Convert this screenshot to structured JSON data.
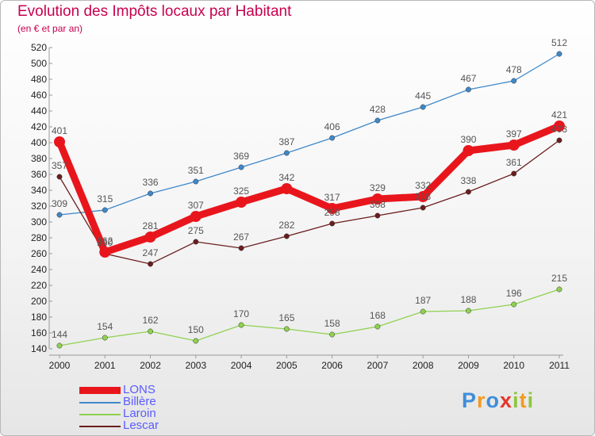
{
  "title": "Evolution des Impôts locaux par Habitant",
  "subtitle": "(en € et par an)",
  "logo": "Proxiti",
  "chart_data": {
    "type": "line",
    "title": "Evolution des Impôts locaux par Habitant",
    "subtitle": "(en € et par an)",
    "xlabel": "",
    "ylabel": "",
    "categories": [
      "2000",
      "2001",
      "2002",
      "2003",
      "2004",
      "2005",
      "2006",
      "2007",
      "2008",
      "2009",
      "2010",
      "2011"
    ],
    "ylim": [
      140,
      520
    ],
    "ytick_step": 20,
    "grid": false,
    "legend_position": "bottom-left",
    "series": [
      {
        "name": "LONS",
        "color": "#e8161c",
        "emphasis": true,
        "values": [
          401,
          262,
          281,
          307,
          325,
          342,
          317,
          329,
          332,
          390,
          397,
          421
        ]
      },
      {
        "name": "Billère",
        "color": "#3f88c9",
        "emphasis": false,
        "values": [
          309,
          315,
          336,
          351,
          369,
          387,
          406,
          428,
          445,
          467,
          478,
          512
        ]
      },
      {
        "name": "Laroin",
        "color": "#8fd14f",
        "emphasis": false,
        "values": [
          144,
          154,
          162,
          150,
          170,
          165,
          158,
          168,
          187,
          188,
          196,
          215
        ]
      },
      {
        "name": "Lescar",
        "color": "#6b1d1d",
        "emphasis": false,
        "values": [
          357,
          260,
          247,
          275,
          267,
          282,
          298,
          308,
          318,
          338,
          361,
          403
        ]
      }
    ]
  }
}
